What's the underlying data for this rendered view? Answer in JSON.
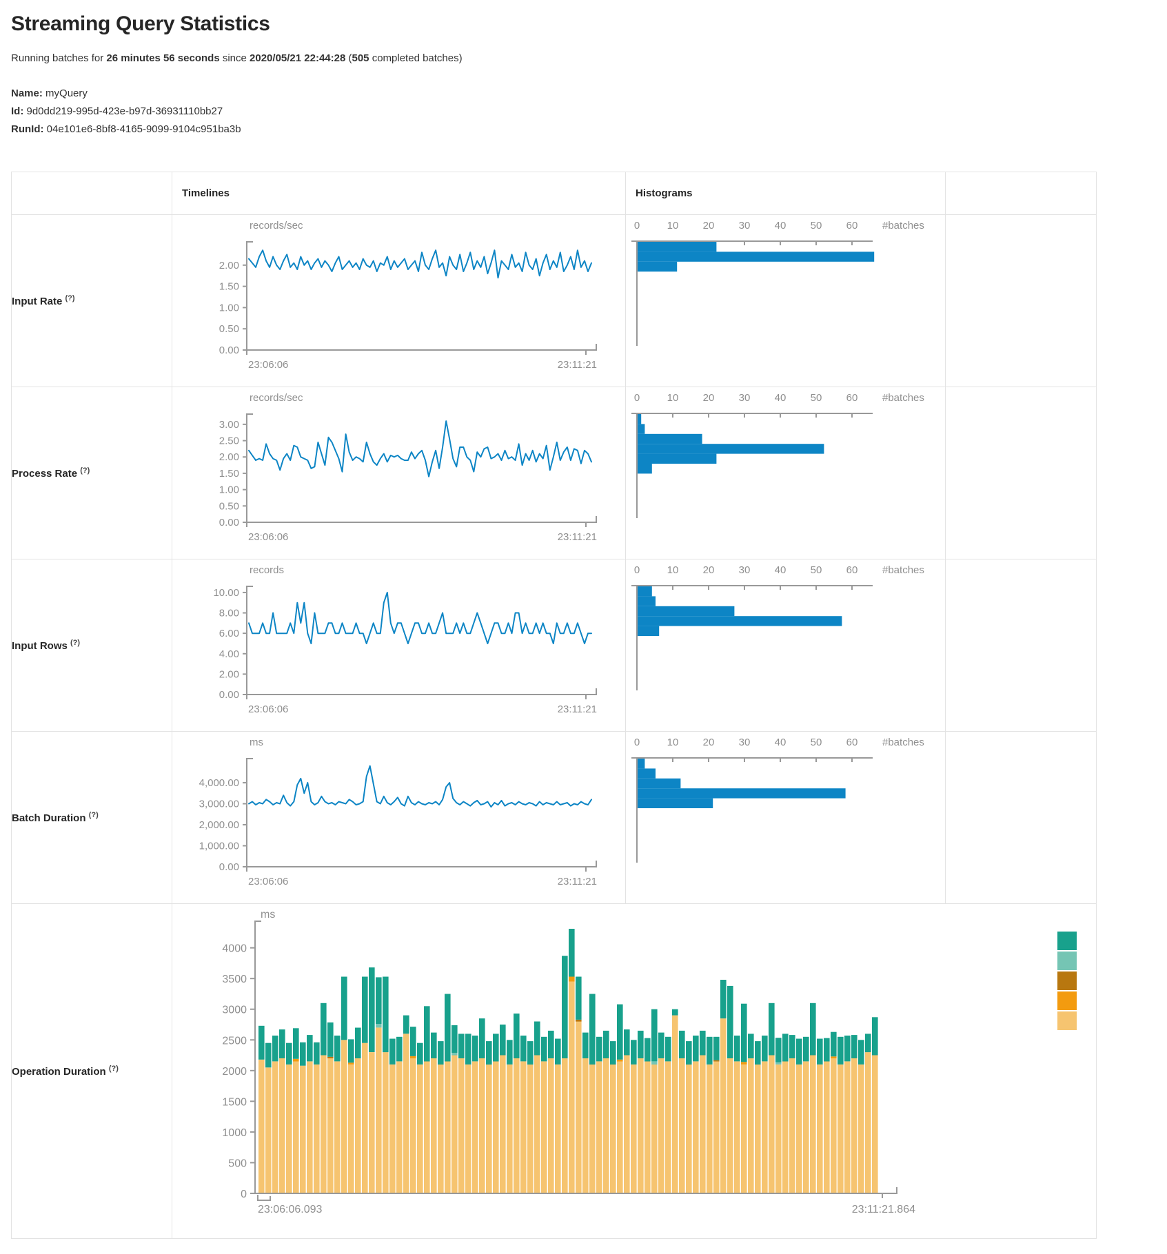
{
  "page": {
    "title": "Streaming Query Statistics"
  },
  "subtitle": {
    "t1": "Running batches for ",
    "duration": "26 minutes 56 seconds",
    "t2": " since ",
    "since": "2020/05/21 22:44:28",
    "t3": " (",
    "count": "505",
    "t4": " completed batches)"
  },
  "meta": {
    "name_label": "Name:",
    "name": "myQuery",
    "id_label": "Id:",
    "id": "9d0dd219-995d-423e-b97d-36931110bb27",
    "runid_label": "RunId:",
    "runid": "04e101e6-8bf8-4165-9099-9104c951ba3b"
  },
  "colors": {
    "line": "#0D85C5",
    "hist": "#0D85C5",
    "axis": "#999999",
    "tick_text": "#8F8F8F",
    "teal": "#18A18C",
    "light_teal": "#75C5B4",
    "brown": "#B8770F",
    "orange": "#F39B0F",
    "tan": "#F6C470"
  },
  "table": {
    "header": {
      "timelines": "Timelines",
      "histograms": "Histograms"
    },
    "rows": [
      {
        "label": "Input Rate",
        "help": "(?)"
      },
      {
        "label": "Process Rate",
        "help": "(?)"
      },
      {
        "label": "Input Rows",
        "help": "(?)"
      },
      {
        "label": "Batch Duration",
        "help": "(?)"
      },
      {
        "label": "Operation Duration",
        "help": "(?)"
      }
    ]
  },
  "chart_data": {
    "x_start": "23:06:06",
    "x_end": "23:11:21",
    "batches_label": "#batches",
    "timelines": [
      {
        "metric": "Input Rate",
        "type": "line",
        "unit": "records/sec",
        "ymax": 2.5,
        "yticks": [
          [
            "2.00",
            2
          ],
          [
            "1.50",
            1.5
          ],
          [
            "1.00",
            1
          ],
          [
            "0.50",
            0.5
          ],
          [
            "0.00",
            0
          ]
        ],
        "values": [
          2.15,
          2.05,
          1.95,
          2.2,
          2.35,
          2.1,
          1.95,
          2.2,
          2.0,
          1.9,
          2.1,
          2.25,
          1.95,
          2.05,
          1.9,
          2.2,
          2.0,
          2.1,
          1.9,
          2.05,
          2.15,
          1.95,
          2.1,
          2.0,
          1.85,
          2.05,
          2.2,
          1.9,
          2.0,
          2.1,
          1.95,
          2.05,
          1.9,
          2.15,
          2.0,
          1.95,
          2.1,
          1.85,
          2.05,
          2.0,
          2.2,
          1.9,
          2.1,
          1.95,
          2.05,
          2.15,
          1.9,
          2.0,
          2.1,
          1.85,
          2.3,
          2.0,
          1.9,
          2.15,
          2.35,
          1.95,
          2.05,
          1.75,
          2.2,
          2.0,
          1.9,
          2.25,
          1.85,
          2.05,
          2.3,
          1.9,
          2.1,
          1.95,
          2.2,
          1.8,
          2.05,
          2.35,
          1.7,
          2.1,
          2.0,
          1.9,
          2.25,
          1.95,
          2.05,
          1.85,
          2.3,
          2.0,
          1.9,
          2.15,
          1.75,
          2.05,
          2.25,
          1.9,
          2.1,
          1.95,
          2.3,
          1.85,
          2.0,
          2.2,
          1.9,
          2.35,
          1.95,
          2.1,
          1.85,
          2.05
        ]
      },
      {
        "metric": "Process Rate",
        "type": "line",
        "unit": "records/sec",
        "ymax": 3.25,
        "yticks": [
          [
            "3.00",
            3
          ],
          [
            "2.50",
            2.5
          ],
          [
            "2.00",
            2
          ],
          [
            "1.50",
            1.5
          ],
          [
            "1.00",
            1
          ],
          [
            "0.50",
            0.5
          ],
          [
            "0.00",
            0
          ]
        ],
        "values": [
          2.2,
          2.05,
          1.9,
          1.95,
          1.9,
          2.4,
          2.1,
          1.95,
          1.9,
          1.6,
          1.95,
          2.1,
          1.9,
          2.35,
          2.3,
          2.0,
          1.95,
          1.9,
          1.65,
          1.7,
          2.45,
          2.1,
          1.75,
          2.6,
          2.45,
          2.2,
          1.95,
          1.55,
          2.7,
          2.15,
          1.9,
          2.0,
          1.95,
          1.85,
          2.45,
          2.1,
          1.85,
          1.75,
          1.95,
          2.1,
          1.85,
          2.05,
          2.0,
          2.05,
          1.95,
          1.9,
          1.9,
          2.15,
          1.95,
          2.1,
          2.2,
          1.9,
          1.4,
          1.85,
          2.2,
          1.65,
          2.3,
          3.1,
          2.55,
          1.95,
          1.7,
          2.3,
          2.3,
          2.0,
          1.9,
          1.55,
          2.15,
          2.0,
          2.25,
          2.3,
          1.95,
          2.0,
          2.1,
          1.9,
          2.2,
          1.95,
          2.0,
          1.9,
          2.4,
          1.75,
          2.1,
          1.9,
          2.2,
          1.85,
          2.1,
          1.95,
          2.35,
          1.6,
          2.0,
          2.45,
          1.9,
          2.15,
          2.3,
          1.9,
          2.25,
          2.2,
          1.8,
          2.2,
          2.1,
          1.85
        ]
      },
      {
        "metric": "Input Rows",
        "type": "line",
        "unit": "records",
        "ymax": 10.4,
        "yticks": [
          [
            "10.00",
            10
          ],
          [
            "8.00",
            8
          ],
          [
            "6.00",
            6
          ],
          [
            "4.00",
            4
          ],
          [
            "2.00",
            2
          ],
          [
            "0.00",
            0
          ]
        ],
        "values": [
          7,
          6,
          6,
          6,
          7,
          6,
          6,
          8,
          6,
          6,
          6,
          6,
          7,
          6,
          9,
          7,
          9,
          6,
          5,
          8,
          6,
          6,
          6,
          7,
          7,
          6,
          6,
          7,
          6,
          6,
          6,
          7,
          6,
          6,
          5,
          6,
          7,
          6,
          6,
          9,
          10,
          7,
          6,
          7,
          7,
          6,
          5,
          6,
          7,
          7,
          6,
          6,
          7,
          6,
          6,
          7,
          8,
          6,
          6,
          6,
          7,
          6,
          7,
          6,
          6,
          7,
          8,
          7,
          6,
          5,
          6,
          7,
          7,
          6,
          6,
          7,
          6,
          8,
          8,
          6,
          7,
          6,
          6,
          7,
          6,
          7,
          6,
          6,
          5,
          7,
          6,
          6,
          7,
          6,
          6,
          7,
          6,
          5,
          6,
          6
        ]
      },
      {
        "metric": "Batch Duration",
        "type": "line",
        "unit": "ms",
        "ymax": 5050,
        "yticks": [
          [
            "4,000.00",
            4000
          ],
          [
            "3,000.00",
            3000
          ],
          [
            "2,000.00",
            2000
          ],
          [
            "1,000.00",
            1000
          ],
          [
            "0.00",
            0
          ]
        ],
        "values": [
          3000,
          3100,
          2950,
          3050,
          3000,
          3200,
          3100,
          2950,
          3050,
          3000,
          3400,
          3050,
          2900,
          3100,
          3900,
          4200,
          3500,
          4000,
          3100,
          2950,
          3050,
          3350,
          3100,
          3000,
          3050,
          2950,
          3100,
          3050,
          3000,
          3200,
          3100,
          2950,
          3000,
          3100,
          4300,
          4800,
          3950,
          3100,
          3000,
          3350,
          3050,
          2950,
          3100,
          3300,
          3000,
          2900,
          3350,
          3050,
          2950,
          3100,
          3000,
          2950,
          3050,
          3000,
          3100,
          2950,
          3200,
          3800,
          4000,
          3250,
          3050,
          2950,
          3100,
          3000,
          2900,
          3050,
          3150,
          2950,
          3000,
          3100,
          2850,
          3050,
          2950,
          3150,
          2900,
          3000,
          3050,
          2950,
          3100,
          3000,
          2950,
          3050,
          3000,
          2900,
          3100,
          2950,
          3050,
          3000,
          2950,
          3100,
          2950,
          3000,
          3050,
          2900,
          3000,
          2950,
          3100,
          3000,
          2950,
          3200
        ]
      }
    ],
    "histograms": [
      {
        "metric": "Input Rate",
        "type": "bar",
        "ticks": [
          0,
          10,
          20,
          30,
          40,
          50,
          60
        ],
        "counts": [
          22,
          66,
          11
        ]
      },
      {
        "metric": "Process Rate",
        "type": "bar",
        "ticks": [
          0,
          10,
          20,
          30,
          40,
          50,
          60
        ],
        "counts": [
          1,
          2,
          18,
          52,
          22,
          4
        ]
      },
      {
        "metric": "Input Rows",
        "type": "bar",
        "ticks": [
          0,
          10,
          20,
          30,
          40,
          50,
          60
        ],
        "counts": [
          4,
          5,
          27,
          57,
          6
        ]
      },
      {
        "metric": "Batch Duration",
        "type": "bar",
        "ticks": [
          0,
          10,
          20,
          30,
          40,
          50,
          60
        ],
        "counts": [
          2,
          5,
          12,
          58,
          21
        ]
      }
    ],
    "operation_duration": {
      "metric": "Operation Duration",
      "type": "stacked-bar",
      "unit": "ms",
      "ymax": 4400,
      "yticks": [
        0,
        500,
        1000,
        1500,
        2000,
        2500,
        3000,
        3500,
        4000
      ],
      "x_start": "23:06:06.093",
      "x_end": "23:11:21.864",
      "stack_order": [
        "tan",
        "orange",
        "brown",
        "light_teal",
        "teal"
      ],
      "legend": [
        "teal",
        "light_teal",
        "brown",
        "orange",
        "tan"
      ],
      "tan": [
        2180,
        2050,
        2150,
        2200,
        2100,
        2150,
        2080,
        2150,
        2100,
        2250,
        2200,
        2150,
        2500,
        2100,
        2200,
        2450,
        2300,
        2700,
        2300,
        2100,
        2150,
        2600,
        2200,
        2100,
        2150,
        2200,
        2100,
        2150,
        2250,
        2200,
        2100,
        2150,
        2200,
        2100,
        2150,
        2250,
        2100,
        2200,
        2150,
        2100,
        2250,
        2150,
        2200,
        2100,
        2200,
        3450,
        2800,
        2200,
        2100,
        2150,
        2200,
        2100,
        2150,
        2250,
        2100,
        2200,
        2150,
        2100,
        2200,
        2150,
        2900,
        2200,
        2100,
        2150,
        2250,
        2100,
        2150,
        2850,
        2200,
        2150,
        2100,
        2200,
        2100,
        2150,
        2250,
        2100,
        2150,
        2200,
        2100,
        2150,
        2250,
        2100,
        2150,
        2200,
        2100,
        2150,
        2200,
        2100,
        2300,
        2250
      ],
      "teal": [
        550,
        400,
        420,
        470,
        350,
        500,
        380,
        430,
        360,
        850,
        560,
        420,
        1030,
        380,
        500,
        1080,
        1380,
        760,
        1230,
        420,
        400,
        300,
        480,
        350,
        900,
        420,
        380,
        1100,
        450,
        400,
        500,
        420,
        650,
        380,
        450,
        500,
        400,
        730,
        420,
        380,
        550,
        400,
        450,
        420,
        1670,
        780,
        700,
        420,
        1150,
        400,
        450,
        380,
        900,
        420,
        400,
        450,
        380,
        850,
        420,
        400,
        100,
        450,
        380,
        420,
        400,
        450,
        380,
        630,
        1180,
        420,
        950,
        400,
        380,
        420,
        850,
        400,
        450,
        380,
        420,
        400,
        850,
        420,
        380,
        400,
        450,
        420,
        380,
        400,
        300,
        620
      ],
      "orange": [
        [
          5,
          40
        ],
        [
          13,
          30
        ],
        [
          22,
          35
        ],
        [
          45,
          80
        ],
        [
          52,
          30
        ],
        [
          70,
          40
        ],
        [
          83,
          30
        ]
      ],
      "light_teal": [
        [
          17,
          60
        ],
        [
          28,
          40
        ],
        [
          57,
          50
        ],
        [
          75,
          35
        ]
      ],
      "brown": [
        [
          10,
          25
        ],
        [
          46,
          30
        ],
        [
          66,
          20
        ]
      ]
    }
  }
}
